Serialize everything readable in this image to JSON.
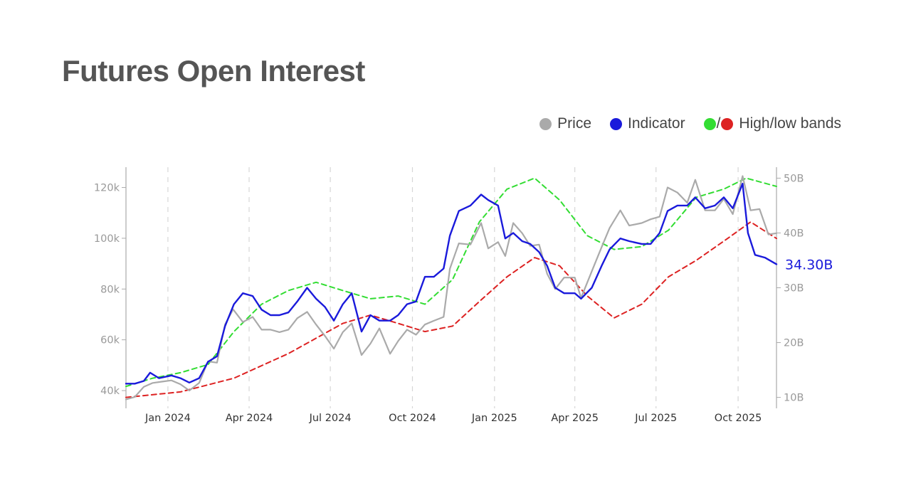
{
  "title": "Futures Open Interest",
  "legend": {
    "price": "Price",
    "indicator": "Indicator",
    "bands_sep": "/",
    "bands": "High/low bands"
  },
  "colors": {
    "price": "#aaaaaa",
    "indicator": "#1a1adb",
    "high_band": "#33dd33",
    "low_band": "#dd2222",
    "axis_text": "#999999",
    "last_value": "#1a1adb"
  },
  "chart_data": {
    "type": "line",
    "x_axis": {
      "type": "date",
      "range": [
        "2023-11-15",
        "2025-11-13"
      ],
      "ticks": [
        {
          "date": "2024-01-01",
          "label": "Jan 2024"
        },
        {
          "date": "2024-04-01",
          "label": "Apr 2024"
        },
        {
          "date": "2024-07-01",
          "label": "Jul 2024"
        },
        {
          "date": "2024-10-01",
          "label": "Oct 2024"
        },
        {
          "date": "2025-01-01",
          "label": "Jan 2025"
        },
        {
          "date": "2025-04-01",
          "label": "Apr 2025"
        },
        {
          "date": "2025-07-01",
          "label": "Jul 2025"
        },
        {
          "date": "2025-10-01",
          "label": "Oct 2025"
        }
      ],
      "grid": "vertical-dashed"
    },
    "y_left": {
      "ylim": [
        33000,
        128000
      ],
      "ticks": [
        {
          "value": 40000,
          "label": "40k"
        },
        {
          "value": 60000,
          "label": "60k"
        },
        {
          "value": 80000,
          "label": "80k"
        },
        {
          "value": 100000,
          "label": "100k"
        },
        {
          "value": 120000,
          "label": "120k"
        }
      ]
    },
    "y_right": {
      "ylim": [
        8000000000,
        52000000000
      ],
      "ticks": [
        {
          "value": 10000000000,
          "label": "10B"
        },
        {
          "value": 20000000000,
          "label": "20B"
        },
        {
          "value": 30000000000,
          "label": "30B"
        },
        {
          "value": 40000000000,
          "label": "40B"
        },
        {
          "value": 50000000000,
          "label": "50B"
        }
      ]
    },
    "last_value_label": "34.30B",
    "series": [
      {
        "name": "Price",
        "axis": "left",
        "points": [
          [
            "2023-11-15",
            36500
          ],
          [
            "2023-11-25",
            37500
          ],
          [
            "2023-12-05",
            41500
          ],
          [
            "2023-12-15",
            43000
          ],
          [
            "2023-12-25",
            43500
          ],
          [
            "2024-01-05",
            44000
          ],
          [
            "2024-01-15",
            42500
          ],
          [
            "2024-01-25",
            40000
          ],
          [
            "2024-02-05",
            43000
          ],
          [
            "2024-02-15",
            51500
          ],
          [
            "2024-02-25",
            51000
          ],
          [
            "2024-03-05",
            66000
          ],
          [
            "2024-03-14",
            72000
          ],
          [
            "2024-03-25",
            67000
          ],
          [
            "2024-04-05",
            69000
          ],
          [
            "2024-04-15",
            64000
          ],
          [
            "2024-04-25",
            64000
          ],
          [
            "2024-05-05",
            63000
          ],
          [
            "2024-05-15",
            64000
          ],
          [
            "2024-05-25",
            68500
          ],
          [
            "2024-06-05",
            71000
          ],
          [
            "2024-06-15",
            66000
          ],
          [
            "2024-06-25",
            61500
          ],
          [
            "2024-07-05",
            56500
          ],
          [
            "2024-07-15",
            63000
          ],
          [
            "2024-07-25",
            66500
          ],
          [
            "2024-08-05",
            54000
          ],
          [
            "2024-08-15",
            58500
          ],
          [
            "2024-08-25",
            64500
          ],
          [
            "2024-09-06",
            54500
          ],
          [
            "2024-09-15",
            59500
          ],
          [
            "2024-09-25",
            64000
          ],
          [
            "2024-10-05",
            62000
          ],
          [
            "2024-10-15",
            66000
          ],
          [
            "2024-10-25",
            67500
          ],
          [
            "2024-11-05",
            69000
          ],
          [
            "2024-11-12",
            88000
          ],
          [
            "2024-11-22",
            98000
          ],
          [
            "2024-12-05",
            97500
          ],
          [
            "2024-12-17",
            106000
          ],
          [
            "2024-12-25",
            96000
          ],
          [
            "2025-01-05",
            98500
          ],
          [
            "2025-01-13",
            93000
          ],
          [
            "2025-01-22",
            106000
          ],
          [
            "2025-02-01",
            102000
          ],
          [
            "2025-02-10",
            97000
          ],
          [
            "2025-02-20",
            97500
          ],
          [
            "2025-03-01",
            86000
          ],
          [
            "2025-03-10",
            80000
          ],
          [
            "2025-03-20",
            84500
          ],
          [
            "2025-04-01",
            84500
          ],
          [
            "2025-04-08",
            76500
          ],
          [
            "2025-04-20",
            87000
          ],
          [
            "2025-05-01",
            96500
          ],
          [
            "2025-05-10",
            104000
          ],
          [
            "2025-05-22",
            111000
          ],
          [
            "2025-06-01",
            105000
          ],
          [
            "2025-06-15",
            106000
          ],
          [
            "2025-06-25",
            107500
          ],
          [
            "2025-07-05",
            108500
          ],
          [
            "2025-07-14",
            120000
          ],
          [
            "2025-07-25",
            118000
          ],
          [
            "2025-08-05",
            114000
          ],
          [
            "2025-08-14",
            123000
          ],
          [
            "2025-08-25",
            111000
          ],
          [
            "2025-09-05",
            111000
          ],
          [
            "2025-09-15",
            115500
          ],
          [
            "2025-09-25",
            109500
          ],
          [
            "2025-10-06",
            124500
          ],
          [
            "2025-10-15",
            111000
          ],
          [
            "2025-10-25",
            111500
          ],
          [
            "2025-11-04",
            101500
          ],
          [
            "2025-11-13",
            102000
          ]
        ]
      },
      {
        "name": "Indicator",
        "axis": "right",
        "points": [
          [
            "2023-11-15",
            12500000000
          ],
          [
            "2023-11-25",
            12500000000
          ],
          [
            "2023-12-05",
            13000000000
          ],
          [
            "2023-12-12",
            14500000000
          ],
          [
            "2023-12-22",
            13500000000
          ],
          [
            "2024-01-05",
            14000000000
          ],
          [
            "2024-01-15",
            13500000000
          ],
          [
            "2024-01-25",
            12700000000
          ],
          [
            "2024-02-05",
            13500000000
          ],
          [
            "2024-02-15",
            16500000000
          ],
          [
            "2024-02-25",
            17500000000
          ],
          [
            "2024-03-05",
            23000000000
          ],
          [
            "2024-03-15",
            27000000000
          ],
          [
            "2024-03-25",
            29000000000
          ],
          [
            "2024-04-05",
            28500000000
          ],
          [
            "2024-04-15",
            26000000000
          ],
          [
            "2024-04-25",
            25000000000
          ],
          [
            "2024-05-05",
            25000000000
          ],
          [
            "2024-05-15",
            25500000000
          ],
          [
            "2024-05-25",
            27500000000
          ],
          [
            "2024-06-05",
            30000000000
          ],
          [
            "2024-06-15",
            28000000000
          ],
          [
            "2024-06-25",
            26500000000
          ],
          [
            "2024-07-05",
            24000000000
          ],
          [
            "2024-07-15",
            27000000000
          ],
          [
            "2024-07-25",
            29000000000
          ],
          [
            "2024-08-05",
            22000000000
          ],
          [
            "2024-08-15",
            25000000000
          ],
          [
            "2024-08-25",
            24000000000
          ],
          [
            "2024-09-06",
            24000000000
          ],
          [
            "2024-09-15",
            25000000000
          ],
          [
            "2024-09-25",
            27000000000
          ],
          [
            "2024-10-05",
            27500000000
          ],
          [
            "2024-10-15",
            32000000000
          ],
          [
            "2024-10-25",
            32000000000
          ],
          [
            "2024-11-05",
            33500000000
          ],
          [
            "2024-11-12",
            39500000000
          ],
          [
            "2024-11-22",
            44000000000
          ],
          [
            "2024-12-05",
            45000000000
          ],
          [
            "2024-12-17",
            47000000000
          ],
          [
            "2024-12-25",
            46000000000
          ],
          [
            "2025-01-05",
            45000000000
          ],
          [
            "2025-01-13",
            39000000000
          ],
          [
            "2025-01-22",
            40000000000
          ],
          [
            "2025-02-01",
            38500000000
          ],
          [
            "2025-02-10",
            38000000000
          ],
          [
            "2025-02-20",
            36500000000
          ],
          [
            "2025-03-01",
            34000000000
          ],
          [
            "2025-03-10",
            30000000000
          ],
          [
            "2025-03-20",
            29000000000
          ],
          [
            "2025-04-01",
            29000000000
          ],
          [
            "2025-04-08",
            28000000000
          ],
          [
            "2025-04-20",
            30000000000
          ],
          [
            "2025-05-01",
            34000000000
          ],
          [
            "2025-05-10",
            37000000000
          ],
          [
            "2025-05-22",
            39000000000
          ],
          [
            "2025-06-01",
            38500000000
          ],
          [
            "2025-06-15",
            38000000000
          ],
          [
            "2025-06-25",
            38000000000
          ],
          [
            "2025-07-05",
            40000000000
          ],
          [
            "2025-07-14",
            44000000000
          ],
          [
            "2025-07-25",
            45000000000
          ],
          [
            "2025-08-05",
            45000000000
          ],
          [
            "2025-08-14",
            46500000000
          ],
          [
            "2025-08-25",
            44500000000
          ],
          [
            "2025-09-05",
            45000000000
          ],
          [
            "2025-09-15",
            46500000000
          ],
          [
            "2025-09-25",
            44500000000
          ],
          [
            "2025-10-06",
            49000000000
          ],
          [
            "2025-10-12",
            40000000000
          ],
          [
            "2025-10-20",
            36000000000
          ],
          [
            "2025-10-31",
            35500000000
          ],
          [
            "2025-11-13",
            34300000000
          ]
        ]
      },
      {
        "name": "High",
        "axis": "right",
        "style": "dashed",
        "points": [
          [
            "2023-11-15",
            12000000000
          ],
          [
            "2023-12-15",
            13500000000
          ],
          [
            "2024-01-15",
            14500000000
          ],
          [
            "2024-02-15",
            16000000000
          ],
          [
            "2024-03-15",
            22000000000
          ],
          [
            "2024-04-15",
            27000000000
          ],
          [
            "2024-05-15",
            29500000000
          ],
          [
            "2024-06-15",
            31000000000
          ],
          [
            "2024-07-15",
            29500000000
          ],
          [
            "2024-08-15",
            28000000000
          ],
          [
            "2024-09-15",
            28500000000
          ],
          [
            "2024-10-15",
            27000000000
          ],
          [
            "2024-11-15",
            31500000000
          ],
          [
            "2024-12-15",
            42000000000
          ],
          [
            "2025-01-15",
            48000000000
          ],
          [
            "2025-02-15",
            50000000000
          ],
          [
            "2025-03-15",
            46000000000
          ],
          [
            "2025-04-15",
            39500000000
          ],
          [
            "2025-05-15",
            37000000000
          ],
          [
            "2025-06-15",
            37500000000
          ],
          [
            "2025-07-15",
            40500000000
          ],
          [
            "2025-08-15",
            46500000000
          ],
          [
            "2025-09-15",
            48000000000
          ],
          [
            "2025-10-10",
            50000000000
          ],
          [
            "2025-11-13",
            48500000000
          ]
        ]
      },
      {
        "name": "Low",
        "axis": "right",
        "style": "dashed",
        "points": [
          [
            "2023-11-15",
            10000000000
          ],
          [
            "2024-01-15",
            11000000000
          ],
          [
            "2024-03-15",
            13500000000
          ],
          [
            "2024-05-15",
            18000000000
          ],
          [
            "2024-07-15",
            23500000000
          ],
          [
            "2024-08-15",
            25000000000
          ],
          [
            "2024-09-15",
            23500000000
          ],
          [
            "2024-10-15",
            22000000000
          ],
          [
            "2024-11-15",
            23000000000
          ],
          [
            "2024-12-15",
            27500000000
          ],
          [
            "2025-01-15",
            32000000000
          ],
          [
            "2025-02-15",
            35500000000
          ],
          [
            "2025-03-15",
            34000000000
          ],
          [
            "2025-04-15",
            28500000000
          ],
          [
            "2025-05-15",
            24500000000
          ],
          [
            "2025-06-15",
            27000000000
          ],
          [
            "2025-07-15",
            32000000000
          ],
          [
            "2025-08-15",
            35000000000
          ],
          [
            "2025-09-15",
            38500000000
          ],
          [
            "2025-10-15",
            42000000000
          ],
          [
            "2025-11-13",
            39000000000
          ]
        ]
      }
    ]
  }
}
